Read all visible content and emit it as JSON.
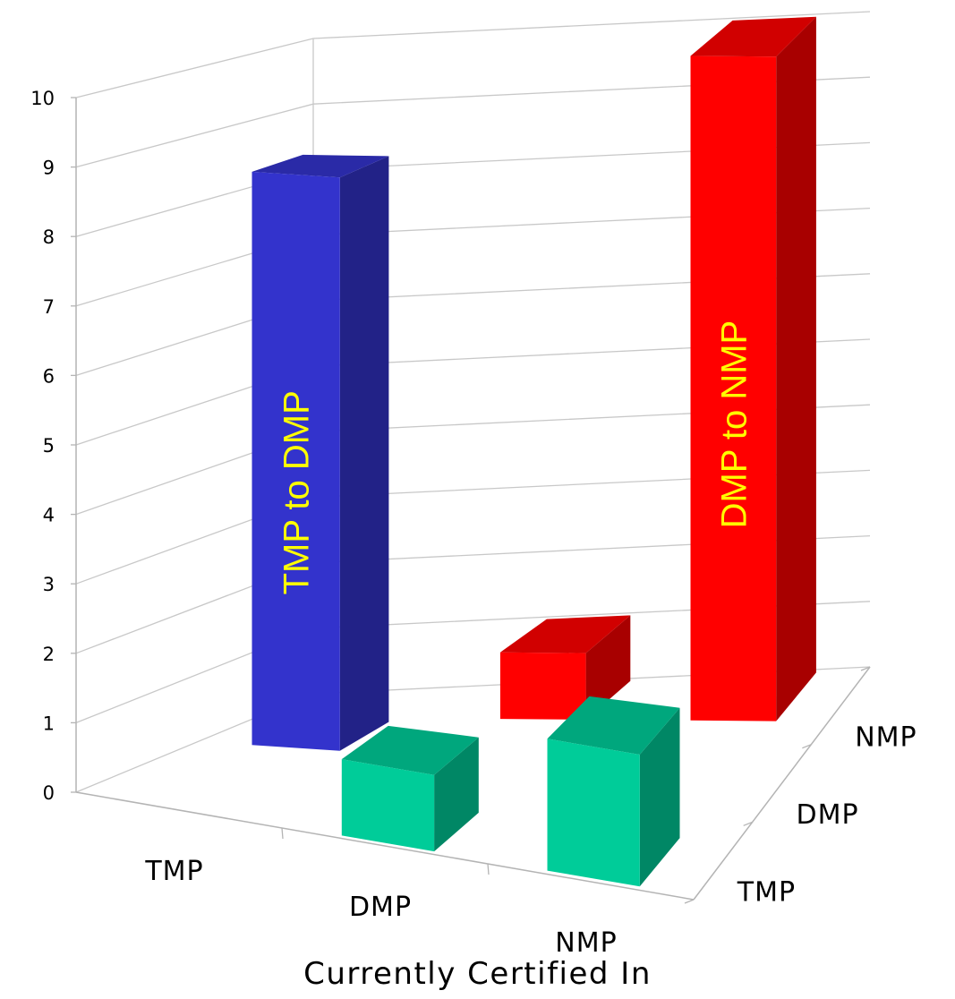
{
  "chart_data": {
    "type": "bar",
    "title": "",
    "xlabel": "Currently Certified In",
    "ylabel": "",
    "ylim": [
      0,
      10
    ],
    "y_ticks": [
      "0",
      "1",
      "2",
      "3",
      "4",
      "5",
      "6",
      "7",
      "8",
      "9",
      "10"
    ],
    "categories": [
      "TMP",
      "DMP",
      "NMP"
    ],
    "depth_categories": [
      "TMP",
      "DMP",
      "NMP"
    ],
    "grid": true,
    "series": [
      {
        "values": [
          0,
          1.1,
          1.9
        ],
        "color": "#00cc99"
      },
      {
        "values": [
          0,
          0,
          0
        ],
        "color": "#3333cc"
      },
      {
        "values": [
          8.5,
          0,
          0
        ],
        "color": "#3333cc"
      },
      {
        "values": [
          0,
          1.0,
          10.0
        ],
        "color": "#ff0000"
      }
    ],
    "bar_labels": [
      {
        "text": "TMP to DMP",
        "color": "#ffff00"
      },
      {
        "text": "DMP to NMP",
        "color": "#ffff00"
      }
    ]
  }
}
